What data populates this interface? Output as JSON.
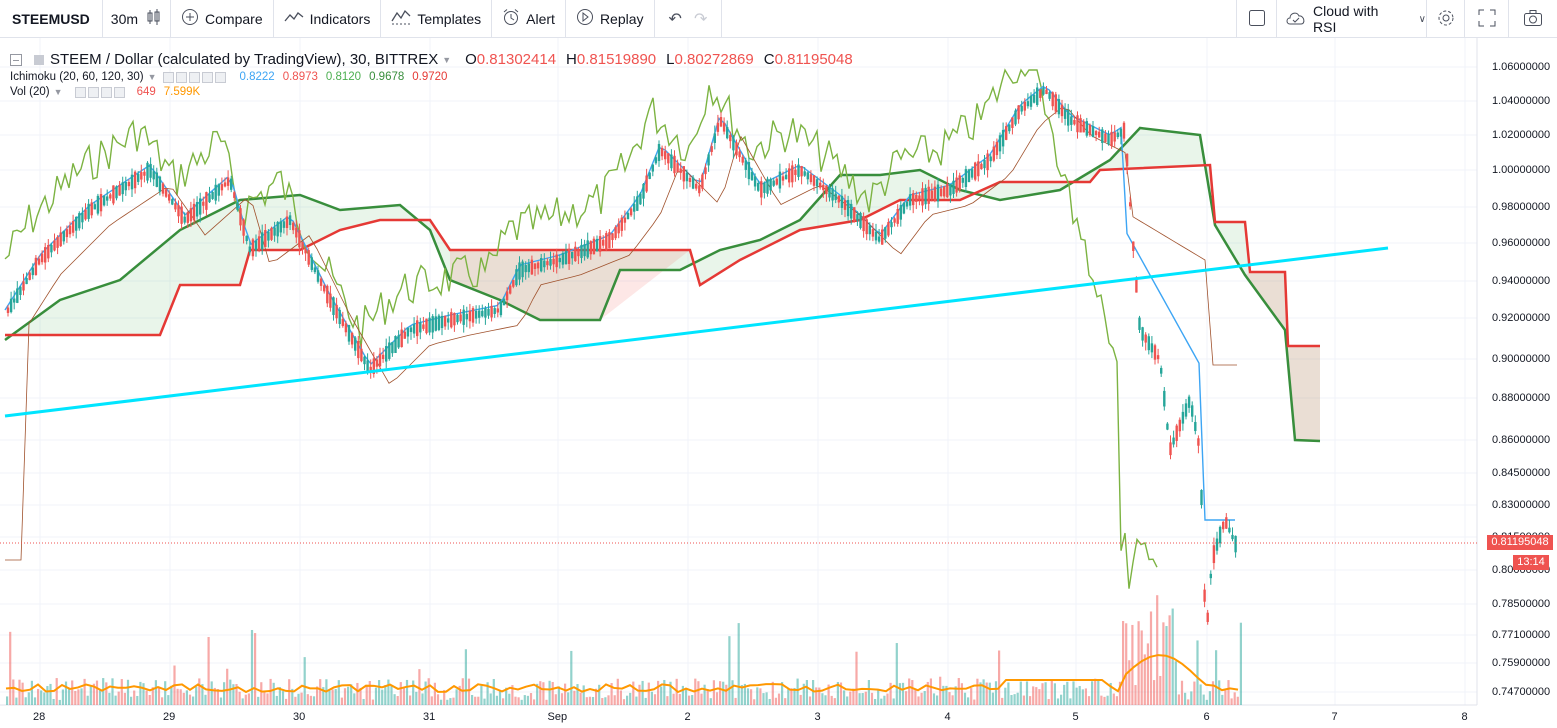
{
  "toolbar": {
    "symbol": "STEEMUSD",
    "interval": "30m",
    "compare": "Compare",
    "indicators": "Indicators",
    "templates": "Templates",
    "alert": "Alert",
    "replay": "Replay",
    "layout": "Cloud with RSI"
  },
  "legend": {
    "title": "STEEM / Dollar (calculated by TradingView), 30, BITTREX",
    "o_label": "O",
    "o_value": "0.81302414",
    "h_label": "H",
    "h_value": "0.81519890",
    "l_label": "L",
    "l_value": "0.80272869",
    "c_label": "C",
    "c_value": "0.81195048",
    "ichimoku_name": "Ichimoku (20, 60, 120, 30)",
    "ichimoku_values": [
      "0.8222",
      "0.8973",
      "0.8120",
      "0.9678",
      "0.9720"
    ],
    "ichimoku_colors": [
      "#3da5f4",
      "#ef5350",
      "#4caf50",
      "#388e3c",
      "#e53935"
    ],
    "vol_name": "Vol (20)",
    "vol_value": "649",
    "vol_ma": "7.599K"
  },
  "price_axis": [
    "1.06000000",
    "1.04000000",
    "1.02000000",
    "1.00000000",
    "0.98000000",
    "0.96000000",
    "0.94000000",
    "0.92000000",
    "0.90000000",
    "0.88000000",
    "0.86000000",
    "0.84500000",
    "0.83000000",
    "0.81500000",
    "0.80000000",
    "0.78500000",
    "0.77100000",
    "0.75900000",
    "0.74700000"
  ],
  "current_price": "0.81195048",
  "countdown": "13:14",
  "time_axis": [
    "28",
    "29",
    "30",
    "31",
    "Sep",
    "2",
    "3",
    "4",
    "5",
    "6",
    "7",
    "8"
  ],
  "chart_data": {
    "type": "candlestick",
    "title": "STEEM / Dollar (calculated by TradingView), 30, BITTREX",
    "y_ticks": [
      1.06,
      1.04,
      1.02,
      1.0,
      0.98,
      0.96,
      0.94,
      0.92,
      0.9,
      0.88,
      0.86,
      0.845,
      0.83,
      0.815,
      0.8,
      0.785,
      0.771,
      0.759,
      0.747
    ],
    "x_ticks": [
      "28",
      "29",
      "30",
      "31",
      "Sep",
      "2",
      "3",
      "4",
      "5",
      "6",
      "7",
      "8"
    ],
    "last_close": 0.81195048,
    "indicators": [
      "Ichimoku (20, 60, 120, 30)",
      "Vol (20)"
    ],
    "trendline": {
      "color": "#00e5ff"
    },
    "colors": {
      "up": "#26a69a",
      "down": "#ef5350",
      "tenkan": "#3da5f4",
      "kijun": "#e53935",
      "chikou": "#7cb342",
      "span_a": "#388e3c",
      "span_b": "#e53935"
    }
  }
}
